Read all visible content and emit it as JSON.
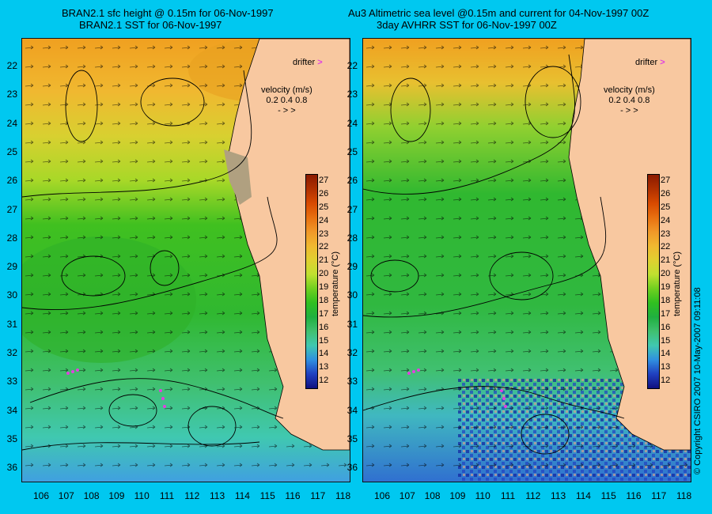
{
  "left_panel": {
    "title_line1": "BRAN2.1 sfc height @ 0.15m for 06-Nov-1997",
    "title_line2": "BRAN2.1 SST for 06-Nov-1997"
  },
  "right_panel": {
    "title_line1": "Au3 Altimetric sea level  @0.15m and current for 04-Nov-1997 00Z",
    "title_line2": "3day AVHRR SST for 06-Nov-1997 00Z"
  },
  "legend": {
    "drifter_label": "drifter",
    "velocity_label": "velocity (m/s)",
    "velocity_scale": "0.2  0.4  0.8",
    "velocity_arrows": "-    >    >"
  },
  "latitude_ticks": [
    "22",
    "23",
    "24",
    "25",
    "26",
    "27",
    "28",
    "29",
    "30",
    "31",
    "32",
    "33",
    "34",
    "35",
    "36"
  ],
  "longitude_ticks": [
    "106",
    "107",
    "108",
    "109",
    "110",
    "111",
    "112",
    "113",
    "114",
    "115",
    "116",
    "117",
    "118"
  ],
  "colorbar": {
    "label": "temperature (°C)",
    "ticks": [
      "27",
      "26",
      "25",
      "24",
      "23",
      "22",
      "21",
      "20",
      "19",
      "18",
      "17",
      "16",
      "15",
      "14",
      "13",
      "12"
    ],
    "colors": [
      "#8b1a00",
      "#b03000",
      "#d84a00",
      "#e87010",
      "#f09828",
      "#f0b830",
      "#e0d030",
      "#c0e030",
      "#70d020",
      "#30c020",
      "#20b040",
      "#40c070",
      "#40c8b0",
      "#3090e0",
      "#2040c0",
      "#101080"
    ]
  },
  "copyright": "© Copyright CSIRO 2007   10-May-2007 09:11:08",
  "colors": {
    "background": "#00c8f0",
    "land": "#f8c8a0",
    "drifter": "#e040e0"
  }
}
